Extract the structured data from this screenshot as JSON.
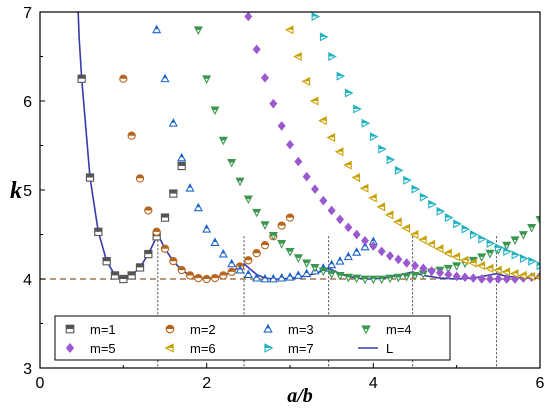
{
  "chart_data": {
    "type": "scatter",
    "xlabel": "a/b",
    "ylabel": "k",
    "xlim": [
      0,
      6
    ],
    "ylim": [
      3,
      7
    ],
    "x_ticks": [
      "0",
      "2",
      "4",
      "6"
    ],
    "y_ticks": [
      "3",
      "4",
      "5",
      "6",
      "7"
    ],
    "reference_line": {
      "y": 4,
      "style": "dashed",
      "color": "#8B5A2B"
    },
    "dotted_verticals": [
      1.414,
      2.449,
      3.464,
      4.472,
      5.477
    ],
    "legend_placement": "bottom",
    "series": [
      {
        "name": "m=1",
        "marker": "square",
        "color": "#555555",
        "x": [
          0.5,
          0.6,
          0.7,
          0.8,
          0.9,
          1.0,
          1.1,
          1.2,
          1.3,
          1.4,
          1.5,
          1.6,
          1.7
        ],
        "y": [
          6.25,
          5.14,
          4.53,
          4.2,
          4.04,
          4.0,
          4.04,
          4.13,
          4.28,
          4.48,
          4.69,
          4.96,
          5.27
        ]
      },
      {
        "name": "m=2",
        "marker": "circle-half",
        "color": "#B5651D",
        "x": [
          1.0,
          1.1,
          1.2,
          1.3,
          1.4,
          1.5,
          1.6,
          1.7,
          1.8,
          1.9,
          2.0,
          2.1,
          2.2,
          2.3,
          2.4,
          2.5,
          2.6,
          2.7,
          2.8,
          2.9,
          3.0
        ],
        "y": [
          6.25,
          5.61,
          5.13,
          4.77,
          4.53,
          4.34,
          4.2,
          4.1,
          4.04,
          4.01,
          4.0,
          4.01,
          4.04,
          4.08,
          4.14,
          4.21,
          4.29,
          4.38,
          4.48,
          4.6,
          4.69
        ]
      },
      {
        "name": "m=3",
        "marker": "triangle-up",
        "color": "#1E64C8",
        "x": [
          1.4,
          1.5,
          1.6,
          1.7,
          1.8,
          1.9,
          2.0,
          2.1,
          2.2,
          2.3,
          2.4,
          2.5,
          2.6,
          2.7,
          2.8,
          2.9,
          3.0,
          3.1,
          3.2,
          3.3,
          3.4,
          3.5,
          3.6,
          3.7,
          3.8,
          3.9,
          4.0
        ],
        "y": [
          6.8,
          6.25,
          5.75,
          5.36,
          5.02,
          4.8,
          4.56,
          4.41,
          4.28,
          4.17,
          4.1,
          4.05,
          4.01,
          4.0,
          4.0,
          4.01,
          4.02,
          4.04,
          4.06,
          4.09,
          4.12,
          4.16,
          4.2,
          4.25,
          4.3,
          4.36,
          4.42
        ]
      },
      {
        "name": "m=4",
        "marker": "triangle-down",
        "color": "#3C9650",
        "x": [
          1.9,
          2.0,
          2.1,
          2.2,
          2.3,
          2.4,
          2.5,
          2.6,
          2.7,
          2.8,
          2.9,
          3.0,
          3.1,
          3.2,
          3.3,
          3.4,
          3.5,
          3.6,
          3.7,
          3.8,
          3.9,
          4.0,
          4.1,
          4.2,
          4.3,
          4.4,
          4.5,
          4.6,
          4.7,
          4.8,
          4.9,
          5.0,
          5.1,
          5.2,
          5.3,
          5.4,
          5.5,
          5.6,
          5.7,
          5.8,
          5.9,
          6.0
        ],
        "y": [
          6.8,
          6.25,
          5.9,
          5.56,
          5.31,
          5.1,
          4.9,
          4.75,
          4.61,
          4.49,
          4.4,
          4.31,
          4.24,
          4.18,
          4.13,
          4.09,
          4.06,
          4.04,
          4.02,
          4.01,
          4.0,
          4.0,
          4.0,
          4.01,
          4.02,
          4.03,
          4.04,
          4.06,
          4.08,
          4.1,
          4.12,
          4.15,
          4.18,
          4.21,
          4.25,
          4.29,
          4.33,
          4.38,
          4.44,
          4.5,
          4.58,
          4.67
        ]
      },
      {
        "name": "m=5",
        "marker": "diamond",
        "color": "#9B59D0",
        "x": [
          2.5,
          2.6,
          2.7,
          2.8,
          2.9,
          3.0,
          3.1,
          3.2,
          3.3,
          3.4,
          3.5,
          3.6,
          3.7,
          3.8,
          3.9,
          4.0,
          4.1,
          4.2,
          4.3,
          4.4,
          4.5,
          4.6,
          4.7,
          4.8,
          4.9,
          5.0,
          5.1,
          5.2,
          5.3,
          5.4,
          5.5,
          5.6,
          5.7,
          5.8,
          5.9,
          6.0
        ],
        "y": [
          6.95,
          6.58,
          6.26,
          5.97,
          5.72,
          5.51,
          5.32,
          5.15,
          5.01,
          4.88,
          4.77,
          4.67,
          4.58,
          4.5,
          4.43,
          4.37,
          4.31,
          4.26,
          4.22,
          4.18,
          4.15,
          4.12,
          4.09,
          4.07,
          4.05,
          4.03,
          4.02,
          4.01,
          4.0,
          4.0,
          4.0,
          4.0,
          4.0,
          4.01,
          4.02,
          4.03
        ]
      },
      {
        "name": "m=6",
        "marker": "triangle-left",
        "color": "#C8A000",
        "x": [
          3.0,
          3.1,
          3.2,
          3.3,
          3.4,
          3.5,
          3.6,
          3.7,
          3.8,
          3.9,
          4.0,
          4.1,
          4.2,
          4.3,
          4.4,
          4.5,
          4.6,
          4.7,
          4.8,
          4.9,
          5.0,
          5.1,
          5.2,
          5.3,
          5.4,
          5.5,
          5.6,
          5.7,
          5.8,
          5.9,
          6.0
        ],
        "y": [
          6.8,
          6.5,
          6.22,
          6.0,
          5.78,
          5.59,
          5.43,
          5.28,
          5.14,
          5.02,
          4.91,
          4.81,
          4.72,
          4.64,
          4.57,
          4.5,
          4.44,
          4.39,
          4.34,
          4.29,
          4.25,
          4.21,
          4.18,
          4.15,
          4.12,
          4.1,
          4.08,
          4.06,
          4.04,
          4.03,
          4.02
        ]
      },
      {
        "name": "m=7",
        "marker": "triangle-right",
        "color": "#20B2C0",
        "x": [
          3.3,
          3.4,
          3.5,
          3.6,
          3.7,
          3.8,
          3.9,
          4.0,
          4.1,
          4.2,
          4.3,
          4.4,
          4.5,
          4.6,
          4.7,
          4.8,
          4.9,
          5.0,
          5.1,
          5.2,
          5.3,
          5.4,
          5.5,
          5.6,
          5.7,
          5.8,
          5.9,
          6.0
        ],
        "y": [
          6.95,
          6.72,
          6.5,
          6.28,
          6.09,
          5.91,
          5.75,
          5.6,
          5.46,
          5.34,
          5.22,
          5.11,
          5.01,
          4.92,
          4.84,
          4.76,
          4.69,
          4.62,
          4.56,
          4.5,
          4.45,
          4.4,
          4.35,
          4.31,
          4.27,
          4.23,
          4.2,
          4.15
        ]
      },
      {
        "name": "L",
        "marker": "line",
        "color": "#3A3AB0",
        "x": [
          0.5,
          0.6,
          0.7,
          0.8,
          0.9,
          1.0,
          1.1,
          1.2,
          1.3,
          1.414,
          1.5,
          1.6,
          1.7,
          1.8,
          1.9,
          2.0,
          2.1,
          2.2,
          2.3,
          2.449,
          2.6,
          2.7,
          2.8,
          2.9,
          3.0,
          3.1,
          3.2,
          3.3,
          3.464,
          3.6,
          3.7,
          3.8,
          3.9,
          4.0,
          4.2,
          4.472,
          4.6,
          4.8,
          5.0,
          5.2,
          5.477,
          5.6,
          5.8,
          6.0
        ],
        "y": [
          6.25,
          5.14,
          4.53,
          4.2,
          4.04,
          4.0,
          4.04,
          4.13,
          4.28,
          4.5,
          4.34,
          4.2,
          4.1,
          4.04,
          4.01,
          4.0,
          4.01,
          4.04,
          4.08,
          4.17,
          4.05,
          4.01,
          4.0,
          4.0,
          4.01,
          4.02,
          4.04,
          4.06,
          4.12,
          4.06,
          4.03,
          4.01,
          4.0,
          4.0,
          4.02,
          4.08,
          4.04,
          4.01,
          4.0,
          4.01,
          4.06,
          4.03,
          4.01,
          4.01
        ]
      }
    ]
  }
}
